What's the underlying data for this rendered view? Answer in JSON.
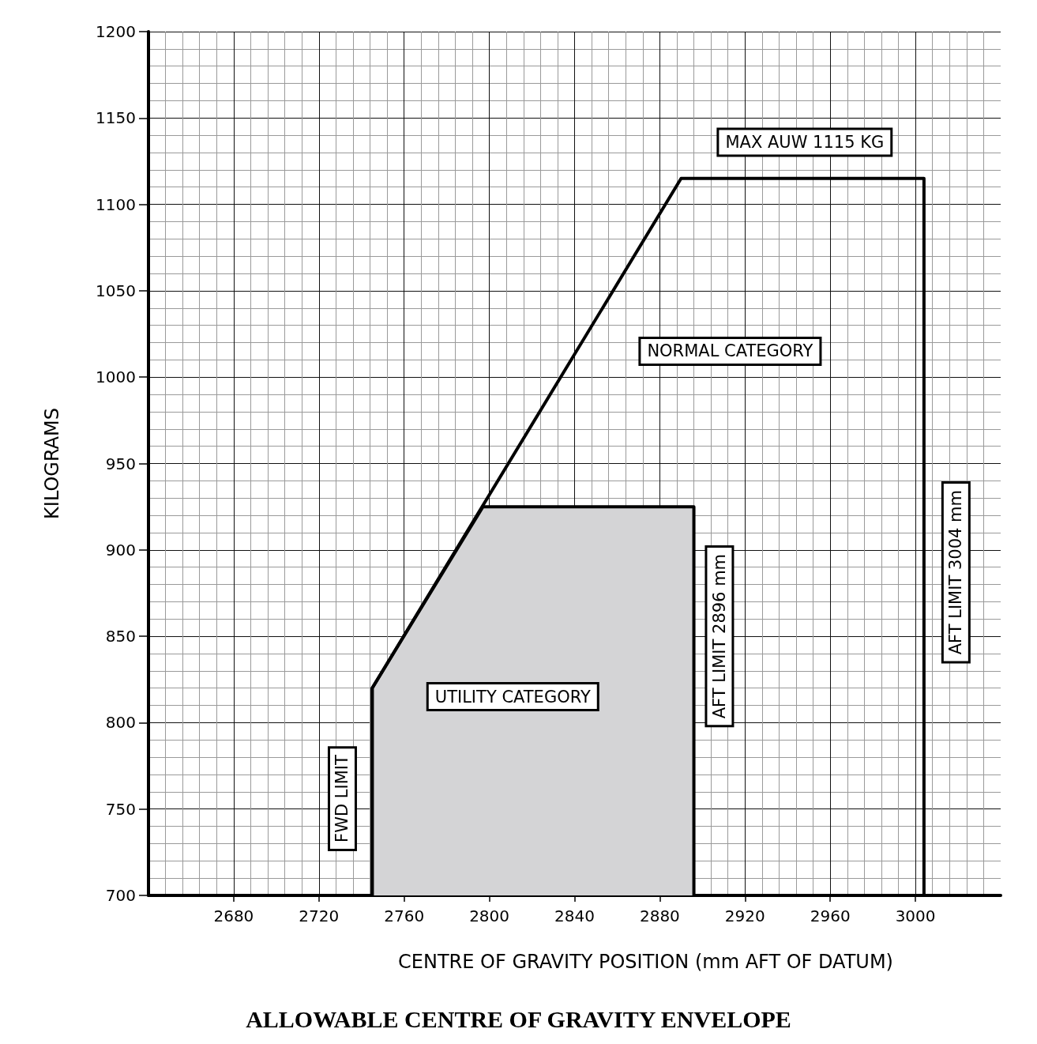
{
  "chart_data": {
    "type": "line",
    "title": "ALLOWABLE CENTRE OF GRAVITY ENVELOPE",
    "xlabel": "CENTRE OF GRAVITY POSITION (mm AFT OF DATUM)",
    "ylabel": "KILOGRAMS",
    "xlim": [
      2640,
      3040
    ],
    "xticks": [
      2680,
      2720,
      2760,
      2800,
      2840,
      2880,
      2920,
      2960,
      3000
    ],
    "ylim": [
      700,
      1200
    ],
    "yticks": [
      700,
      750,
      800,
      850,
      900,
      950,
      1000,
      1050,
      1100,
      1150,
      1200
    ],
    "grid": true,
    "marker": "none",
    "series": [
      {
        "type": "area",
        "color": "#d4d4d6",
        "x": [
          2745,
          2745,
          2797,
          2896,
          2896
        ],
        "values": [
          700,
          820,
          925,
          925,
          700
        ]
      },
      {
        "type": "line",
        "color": "#000000",
        "x": [
          2745,
          2745,
          2890,
          3004,
          3004
        ],
        "values": [
          700,
          820,
          1115,
          1115,
          700
        ]
      }
    ],
    "annotations": [
      "MAX AUW 1115 KG",
      "NORMAL CATEGORY",
      "AFT LIMIT 3004 mm",
      "AFT LIMIT 2896 mm",
      "UTILITY CATEGORY",
      "FWD LIMIT"
    ]
  }
}
